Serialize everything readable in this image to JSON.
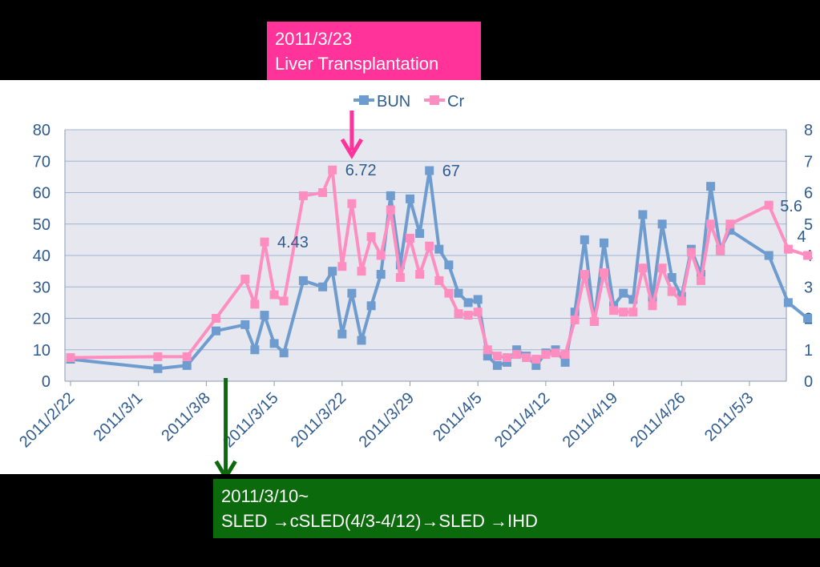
{
  "colors": {
    "bun": "#6f9ccf",
    "cr": "#ff8ec0",
    "plot_background": "#e7e8ef",
    "gridline": "#9fb4d0",
    "axis_text": "#2f5b8f",
    "transplant_callout": "#ff3399",
    "therapy_callout": "#0b6a0b"
  },
  "callouts": {
    "transplant": {
      "line1": "2011/3/23",
      "line2": "Liver Transplantation"
    },
    "therapy": {
      "line1": "2011/3/10~",
      "line2": "SLED →cSLED(4/3-4/12)→SLED →IHD"
    }
  },
  "chart_data": {
    "type": "line",
    "legend": [
      "BUN",
      "Cr"
    ],
    "legend_position": "top",
    "grid": true,
    "x_ticks": [
      "2011/2/22",
      "2011/3/1",
      "2011/3/8",
      "2011/3/15",
      "2011/3/22",
      "2011/3/29",
      "2011/4/5",
      "2011/4/12",
      "2011/4/19",
      "2011/4/26",
      "2011/5/3"
    ],
    "y_left": {
      "ylim": [
        0,
        80
      ],
      "ticks": [
        "0",
        "10",
        "20",
        "30",
        "40",
        "50",
        "60",
        "70",
        "80"
      ]
    },
    "y_right": {
      "ylim": [
        0,
        8
      ],
      "ticks": [
        "0",
        "1",
        "2",
        "3",
        "4",
        "5",
        "6",
        "7",
        "8"
      ]
    },
    "series": [
      {
        "name": "BUN",
        "axis": "left",
        "points": [
          [
            "2011/2/22",
            7
          ],
          [
            "2011/3/3",
            4
          ],
          [
            "2011/3/6",
            5
          ],
          [
            "2011/3/9",
            16
          ],
          [
            "2011/3/12",
            18
          ],
          [
            "2011/3/13",
            10
          ],
          [
            "2011/3/14",
            21
          ],
          [
            "2011/3/15",
            12
          ],
          [
            "2011/3/16",
            9
          ],
          [
            "2011/3/18",
            32
          ],
          [
            "2011/3/20",
            30
          ],
          [
            "2011/3/21",
            35
          ],
          [
            "2011/3/22",
            15
          ],
          [
            "2011/3/23",
            28
          ],
          [
            "2011/3/24",
            13
          ],
          [
            "2011/3/25",
            24
          ],
          [
            "2011/3/26",
            34
          ],
          [
            "2011/3/27",
            59
          ],
          [
            "2011/3/28",
            37
          ],
          [
            "2011/3/29",
            58
          ],
          [
            "2011/3/30",
            47
          ],
          [
            "2011/3/31",
            67
          ],
          [
            "2011/4/1",
            42
          ],
          [
            "2011/4/2",
            37
          ],
          [
            "2011/4/3",
            28
          ],
          [
            "2011/4/4",
            25
          ],
          [
            "2011/4/5",
            26
          ],
          [
            "2011/4/6",
            8
          ],
          [
            "2011/4/7",
            5
          ],
          [
            "2011/4/8",
            6
          ],
          [
            "2011/4/9",
            10
          ],
          [
            "2011/4/10",
            8
          ],
          [
            "2011/4/11",
            5
          ],
          [
            "2011/4/12",
            9
          ],
          [
            "2011/4/13",
            10
          ],
          [
            "2011/4/14",
            6
          ],
          [
            "2011/4/15",
            22
          ],
          [
            "2011/4/16",
            45
          ],
          [
            "2011/4/17",
            19
          ],
          [
            "2011/4/18",
            44
          ],
          [
            "2011/4/19",
            24
          ],
          [
            "2011/4/20",
            28
          ],
          [
            "2011/4/21",
            26
          ],
          [
            "2011/4/22",
            53
          ],
          [
            "2011/4/23",
            26
          ],
          [
            "2011/4/24",
            50
          ],
          [
            "2011/4/25",
            33
          ],
          [
            "2011/4/26",
            27
          ],
          [
            "2011/4/27",
            42
          ],
          [
            "2011/4/28",
            34
          ],
          [
            "2011/4/29",
            62
          ],
          [
            "2011/4/30",
            42
          ],
          [
            "2011/5/1",
            48
          ],
          [
            "2011/5/5",
            40
          ],
          [
            "2011/5/7",
            25
          ],
          [
            "2011/5/9",
            20
          ]
        ],
        "data_labels": [
          {
            "x": "2011/3/31",
            "text": "67"
          }
        ]
      },
      {
        "name": "Cr",
        "axis": "right",
        "points": [
          [
            "2011/2/22",
            0.75
          ],
          [
            "2011/3/3",
            0.78
          ],
          [
            "2011/3/6",
            0.78
          ],
          [
            "2011/3/9",
            2.0
          ],
          [
            "2011/3/12",
            3.25
          ],
          [
            "2011/3/13",
            2.45
          ],
          [
            "2011/3/14",
            4.43
          ],
          [
            "2011/3/15",
            2.75
          ],
          [
            "2011/3/16",
            2.55
          ],
          [
            "2011/3/18",
            5.9
          ],
          [
            "2011/3/20",
            6.0
          ],
          [
            "2011/3/21",
            6.72
          ],
          [
            "2011/3/22",
            3.65
          ],
          [
            "2011/3/23",
            5.65
          ],
          [
            "2011/3/24",
            3.5
          ],
          [
            "2011/3/25",
            4.6
          ],
          [
            "2011/3/26",
            4.0
          ],
          [
            "2011/3/27",
            5.45
          ],
          [
            "2011/3/28",
            3.3
          ],
          [
            "2011/3/29",
            4.55
          ],
          [
            "2011/3/30",
            3.4
          ],
          [
            "2011/3/31",
            4.3
          ],
          [
            "2011/4/1",
            3.2
          ],
          [
            "2011/4/2",
            2.8
          ],
          [
            "2011/4/3",
            2.15
          ],
          [
            "2011/4/4",
            2.1
          ],
          [
            "2011/4/5",
            2.2
          ],
          [
            "2011/4/6",
            1.0
          ],
          [
            "2011/4/7",
            0.8
          ],
          [
            "2011/4/8",
            0.75
          ],
          [
            "2011/4/9",
            0.85
          ],
          [
            "2011/4/10",
            0.75
          ],
          [
            "2011/4/11",
            0.7
          ],
          [
            "2011/4/12",
            0.85
          ],
          [
            "2011/4/13",
            0.9
          ],
          [
            "2011/4/14",
            0.85
          ],
          [
            "2011/4/15",
            1.95
          ],
          [
            "2011/4/16",
            3.4
          ],
          [
            "2011/4/17",
            1.9
          ],
          [
            "2011/4/18",
            3.45
          ],
          [
            "2011/4/19",
            2.25
          ],
          [
            "2011/4/20",
            2.2
          ],
          [
            "2011/4/21",
            2.2
          ],
          [
            "2011/4/22",
            3.6
          ],
          [
            "2011/4/23",
            2.4
          ],
          [
            "2011/4/24",
            3.6
          ],
          [
            "2011/4/25",
            2.85
          ],
          [
            "2011/4/26",
            2.55
          ],
          [
            "2011/4/27",
            4.1
          ],
          [
            "2011/4/28",
            3.2
          ],
          [
            "2011/4/29",
            5.0
          ],
          [
            "2011/4/30",
            4.15
          ],
          [
            "2011/5/1",
            5.0
          ],
          [
            "2011/5/5",
            5.6
          ],
          [
            "2011/5/7",
            4.2
          ],
          [
            "2011/5/9",
            4.0
          ]
        ],
        "data_labels": [
          {
            "x": "2011/3/14",
            "text": "4.43"
          },
          {
            "x": "2011/3/21",
            "text": "6.72"
          },
          {
            "x": "2011/5/5",
            "text": "5.6"
          },
          {
            "x": "2011/5/9",
            "text": "4"
          }
        ]
      }
    ],
    "annotations": [
      {
        "type": "arrow",
        "x": "2011/3/23",
        "color": "#ff3399",
        "target": "transplant"
      },
      {
        "type": "arrow",
        "x": "2011/3/10",
        "color": "#0b6a0b",
        "target": "therapy"
      }
    ]
  }
}
